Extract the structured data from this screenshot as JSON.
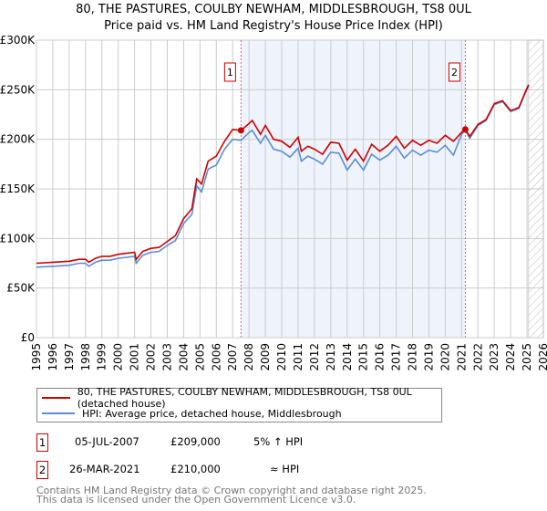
{
  "title_line1": "80, THE PASTURES, COULBY NEWHAM, MIDDLESBROUGH, TS8 0UL",
  "title_line2": "Price paid vs. HM Land Registry's House Price Index (HPI)",
  "colors": {
    "property": "#cc0000",
    "hpi": "#5b8fd4",
    "shade": "#eef3fc"
  },
  "chart_data": {
    "type": "line",
    "ylim": [
      0,
      300000
    ],
    "xlim": [
      1995,
      2026
    ],
    "yticks": [
      {
        "v": 0,
        "label": "£0"
      },
      {
        "v": 50000,
        "label": "£50K"
      },
      {
        "v": 100000,
        "label": "£100K"
      },
      {
        "v": 150000,
        "label": "£150K"
      },
      {
        "v": 200000,
        "label": "£200K"
      },
      {
        "v": 250000,
        "label": "£250K"
      },
      {
        "v": 300000,
        "label": "£300K"
      }
    ],
    "xticks": [
      "1995",
      "1996",
      "1997",
      "1998",
      "1999",
      "2000",
      "2001",
      "2002",
      "2003",
      "2004",
      "2005",
      "2006",
      "2007",
      "2008",
      "2009",
      "2010",
      "2011",
      "2012",
      "2013",
      "2014",
      "2015",
      "2016",
      "2017",
      "2018",
      "2019",
      "2020",
      "2021",
      "2022",
      "2023",
      "2024",
      "2025",
      "2026"
    ],
    "shaded_range": [
      2007.51,
      2021.23
    ],
    "forecast_hatch_from": 2025.1,
    "series": [
      {
        "name": "80, THE PASTURES, COULBY NEWHAM, MIDDLESBROUGH, TS8 0UL (detached house)",
        "x": [
          1995,
          1996,
          1997,
          1997.6,
          1998,
          1998.2,
          1998.6,
          1999,
          1999.5,
          2000,
          2000.5,
          2001,
          2001.1,
          2001.5,
          2002,
          2002.5,
          2003,
          2003.5,
          2004,
          2004.5,
          2004.8,
          2005.1,
          2005.5,
          2006,
          2006.5,
          2007,
          2007.51,
          2008,
          2008.2,
          2008.7,
          2009,
          2009.5,
          2010,
          2010.5,
          2011,
          2011.2,
          2011.6,
          2012,
          2012.5,
          2013,
          2013.5,
          2014,
          2014.5,
          2015,
          2015.5,
          2016,
          2016.5,
          2017,
          2017.5,
          2018,
          2018.5,
          2019,
          2019.5,
          2020,
          2020.5,
          2021,
          2021.23,
          2021.5,
          2022,
          2022.5,
          2023,
          2023.5,
          2024,
          2024.5,
          2024.9,
          2025.1
        ],
        "y": [
          75000,
          76000,
          77000,
          79000,
          79000,
          76000,
          80000,
          82000,
          82000,
          84000,
          85000,
          86000,
          79000,
          87000,
          90000,
          91000,
          97000,
          103000,
          120000,
          130000,
          160000,
          155000,
          178000,
          183000,
          198000,
          210000,
          209000,
          216000,
          219000,
          205000,
          214000,
          200000,
          198000,
          192000,
          202000,
          188000,
          193000,
          190000,
          185000,
          197000,
          196000,
          179000,
          190000,
          178000,
          195000,
          188000,
          194000,
          203000,
          191000,
          199000,
          194000,
          199000,
          196000,
          204000,
          198000,
          207000,
          210000,
          203000,
          215000,
          220000,
          236000,
          239000,
          229000,
          232000,
          248000,
          255000
        ]
      },
      {
        "name": "HPI: Average price, detached house, Middlesbrough",
        "x": [
          1995,
          1996,
          1997,
          1997.6,
          1998,
          1998.2,
          1998.6,
          1999,
          1999.5,
          2000,
          2000.5,
          2001,
          2001.1,
          2001.5,
          2002,
          2002.5,
          2003,
          2003.5,
          2004,
          2004.5,
          2004.8,
          2005.1,
          2005.5,
          2006,
          2006.5,
          2007,
          2007.51,
          2008,
          2008.2,
          2008.7,
          2009,
          2009.5,
          2010,
          2010.5,
          2011,
          2011.2,
          2011.6,
          2012,
          2012.5,
          2013,
          2013.5,
          2014,
          2014.5,
          2015,
          2015.5,
          2016,
          2016.5,
          2017,
          2017.5,
          2018,
          2018.5,
          2019,
          2019.5,
          2020,
          2020.5,
          2021,
          2021.23,
          2021.5,
          2022,
          2022.5,
          2023,
          2023.5,
          2024,
          2024.5,
          2024.9,
          2025.1
        ],
        "y": [
          71000,
          72000,
          73000,
          75000,
          75000,
          72000,
          76000,
          78000,
          78000,
          80000,
          81000,
          82000,
          75000,
          83000,
          86000,
          87000,
          93000,
          98000,
          115000,
          124000,
          153000,
          147000,
          170000,
          174000,
          190000,
          200000,
          199000,
          207000,
          209000,
          196000,
          204000,
          190000,
          188000,
          182000,
          191000,
          178000,
          183000,
          180000,
          175000,
          187000,
          186000,
          169000,
          180000,
          169000,
          185000,
          179000,
          184000,
          193000,
          181000,
          189000,
          184000,
          189000,
          187000,
          194000,
          184000,
          205000,
          209000,
          201000,
          214000,
          219000,
          235000,
          238000,
          228000,
          231000,
          247000,
          254000
        ]
      }
    ],
    "markers": [
      {
        "label": "1",
        "x": 2007.51,
        "y": 209000
      },
      {
        "label": "2",
        "x": 2021.23,
        "y": 210000
      }
    ]
  },
  "legend": {
    "property": "80, THE PASTURES, COULBY NEWHAM, MIDDLESBROUGH, TS8 0UL (detached house)",
    "hpi": "HPI: Average price, detached house, Middlesbrough"
  },
  "transactions": [
    {
      "num": "1",
      "date": "05-JUL-2007",
      "price": "£209,000",
      "rel": "5% ↑ HPI"
    },
    {
      "num": "2",
      "date": "26-MAR-2021",
      "price": "£210,000",
      "rel": "≈ HPI"
    }
  ],
  "footer": {
    "line1": "Contains HM Land Registry data © Crown copyright and database right 2025.",
    "line2": "This data is licensed under the Open Government Licence v3.0."
  }
}
